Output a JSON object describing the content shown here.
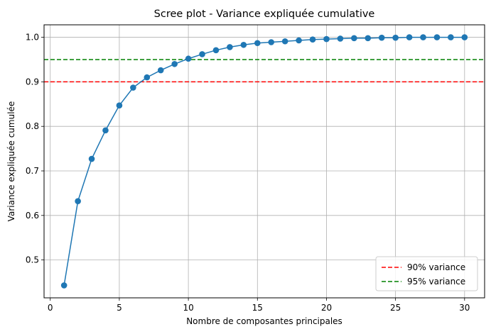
{
  "chart_data": {
    "type": "line",
    "title": "Scree plot - Variance expliquée cumulative",
    "xlabel": "Nombre de composantes principales",
    "ylabel": "Variance expliquée cumulée",
    "xlim": [
      -0.45,
      31.45
    ],
    "ylim": [
      0.415,
      1.028
    ],
    "xticks": [
      0,
      5,
      10,
      15,
      20,
      25,
      30
    ],
    "yticks": [
      0.5,
      0.6,
      0.7,
      0.8,
      0.9,
      1.0
    ],
    "xtick_labels": [
      "0",
      "5",
      "10",
      "15",
      "20",
      "25",
      "30"
    ],
    "ytick_labels": [
      "0.5",
      "0.6",
      "0.7",
      "0.8",
      "0.9",
      "1.0"
    ],
    "grid": true,
    "series": [
      {
        "color": "#1f77b4",
        "marker": "circle",
        "x": [
          1,
          2,
          3,
          4,
          5,
          6,
          7,
          8,
          9,
          10,
          11,
          12,
          13,
          14,
          15,
          16,
          17,
          18,
          19,
          20,
          21,
          22,
          23,
          24,
          25,
          26,
          27,
          28,
          29,
          30
        ],
        "values": [
          0.443,
          0.632,
          0.727,
          0.791,
          0.847,
          0.887,
          0.91,
          0.926,
          0.94,
          0.952,
          0.962,
          0.971,
          0.978,
          0.983,
          0.987,
          0.989,
          0.991,
          0.993,
          0.995,
          0.996,
          0.997,
          0.998,
          0.998,
          0.999,
          0.999,
          1.0,
          1.0,
          1.0,
          1.0,
          1.0
        ]
      }
    ],
    "reference_lines": [
      {
        "name": "90% variance",
        "y": 0.9,
        "color": "#ff0000",
        "style": "dashed"
      },
      {
        "name": "95% variance",
        "y": 0.95,
        "color": "#008000",
        "style": "dashed"
      }
    ],
    "legend": {
      "position": "bottom-right",
      "entries": [
        "90% variance",
        "95% variance"
      ]
    }
  }
}
